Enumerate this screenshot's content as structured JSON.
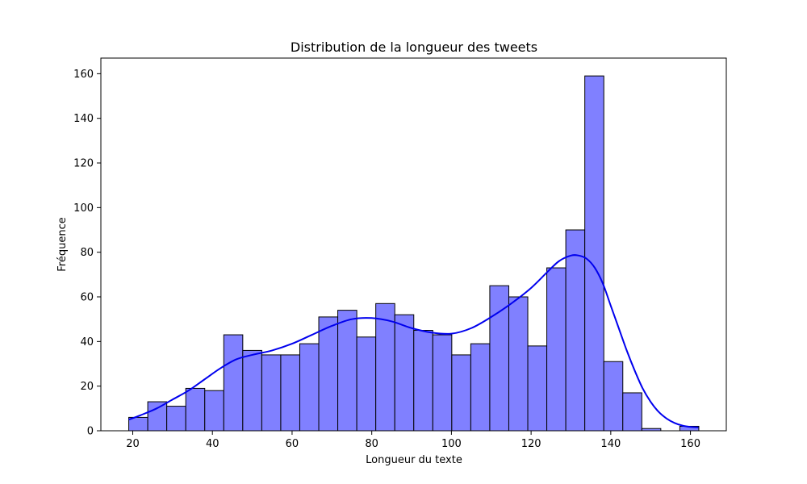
{
  "chart_data": {
    "type": "bar",
    "title": "Distribution de la longueur des tweets",
    "xlabel": "Longueur du texte",
    "ylabel": "Fréquence",
    "xlim": [
      12,
      169
    ],
    "ylim": [
      0,
      167
    ],
    "xticks": [
      20,
      40,
      60,
      80,
      100,
      120,
      140,
      160
    ],
    "yticks": [
      0,
      20,
      40,
      60,
      80,
      100,
      120,
      140,
      160
    ],
    "grid": false,
    "bin_start": 19,
    "bin_width": 4.77,
    "values": [
      6,
      13,
      11,
      19,
      18,
      43,
      36,
      34,
      34,
      39,
      51,
      54,
      42,
      57,
      52,
      45,
      43,
      34,
      39,
      65,
      60,
      38,
      73,
      90,
      159,
      31,
      17,
      1,
      0,
      2
    ],
    "bar_color": "#8080ff",
    "bar_edge_color": "#000000",
    "kde": {
      "color": "#0000ee",
      "x": [
        19,
        22,
        26,
        30,
        34,
        38,
        42,
        46,
        50,
        55,
        60,
        65,
        70,
        75,
        80,
        85,
        90,
        95,
        100,
        105,
        110,
        115,
        120,
        124,
        127,
        130,
        132,
        134,
        136,
        138,
        140,
        142,
        144,
        146,
        148,
        150,
        152,
        154,
        156,
        158,
        160,
        162
      ],
      "y": [
        5,
        7,
        10,
        14,
        18,
        23,
        28,
        32,
        34,
        36,
        39,
        43,
        47,
        50,
        50.5,
        49,
        46,
        44,
        43.5,
        46,
        51,
        57,
        64,
        71,
        76,
        78.5,
        78.5,
        77,
        73,
        66,
        56,
        46,
        36,
        27,
        19,
        13,
        8.5,
        5.5,
        3.5,
        2.3,
        1.7,
        1.5
      ]
    }
  }
}
